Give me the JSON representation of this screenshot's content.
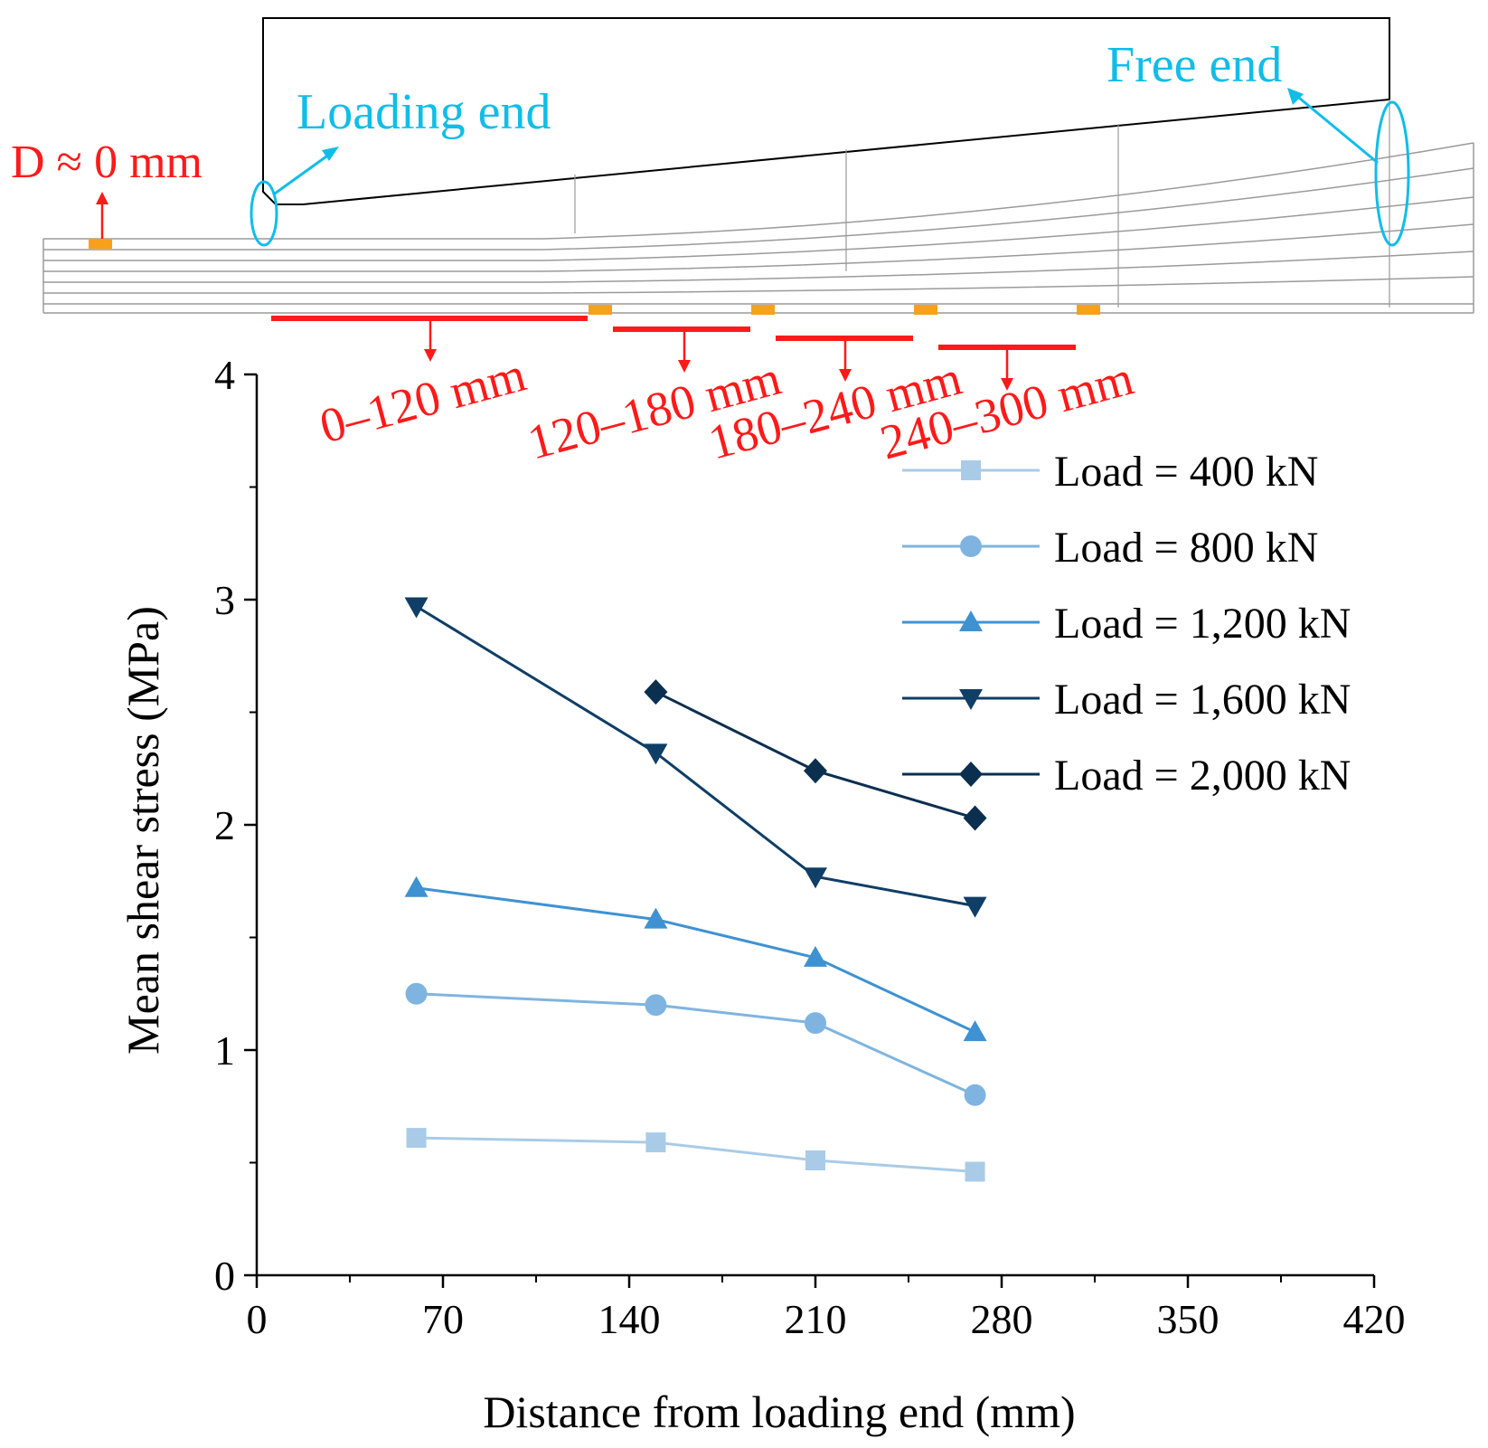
{
  "colors": {
    "red": "#ff1a1a",
    "cyan": "#11bde8",
    "orange": "#f7a11a",
    "axis": "#000000",
    "diagram_line": "#9a9a9a",
    "s400": "#a9cbe8",
    "s800": "#7fb4e0",
    "s1200": "#3f92d2",
    "s1600": "#0f3e66",
    "s2000": "#0b2f4f"
  },
  "diagram": {
    "loading_end": "Loading end",
    "free_end": "Free end",
    "displacement": "D ≈ 0 mm",
    "segments": [
      "0–120 mm",
      "120–180 mm",
      "180–240 mm",
      "240–300 mm"
    ]
  },
  "chart_data": {
    "type": "line",
    "title": "",
    "xlabel": "Distance from loading end (mm)",
    "ylabel": "Mean shear stress (MPa)",
    "xlim": [
      0,
      420
    ],
    "ylim": [
      0,
      4
    ],
    "xticks": [
      0,
      70,
      140,
      210,
      280,
      350,
      420
    ],
    "yticks": [
      0,
      1,
      2,
      3,
      4
    ],
    "x_tick_labels": [
      "0",
      "70",
      "140",
      "210",
      "280",
      "350",
      "420"
    ],
    "y_tick_labels": [
      "0",
      "1",
      "2",
      "3",
      "4"
    ],
    "legend_position": "top-right",
    "series": [
      {
        "name": "Load = 400 kN",
        "marker": "square",
        "color_key": "s400",
        "x": [
          60,
          150,
          210,
          270
        ],
        "values": [
          0.61,
          0.59,
          0.51,
          0.46
        ]
      },
      {
        "name": "Load = 800 kN",
        "marker": "circle",
        "color_key": "s800",
        "x": [
          60,
          150,
          210,
          270
        ],
        "values": [
          1.25,
          1.2,
          1.12,
          0.8
        ]
      },
      {
        "name": "Load = 1,200 kN",
        "marker": "triangle-up",
        "color_key": "s1200",
        "x": [
          60,
          150,
          210,
          270
        ],
        "values": [
          1.72,
          1.58,
          1.41,
          1.08
        ]
      },
      {
        "name": "Load = 1,600 kN",
        "marker": "triangle-down",
        "color_key": "s1600",
        "x": [
          60,
          150,
          210,
          270
        ],
        "values": [
          2.97,
          2.32,
          1.77,
          1.64
        ]
      },
      {
        "name": "Load = 2,000 kN",
        "marker": "diamond",
        "color_key": "s2000",
        "x": [
          150,
          210,
          270
        ],
        "values": [
          2.59,
          2.24,
          2.03
        ]
      }
    ]
  }
}
